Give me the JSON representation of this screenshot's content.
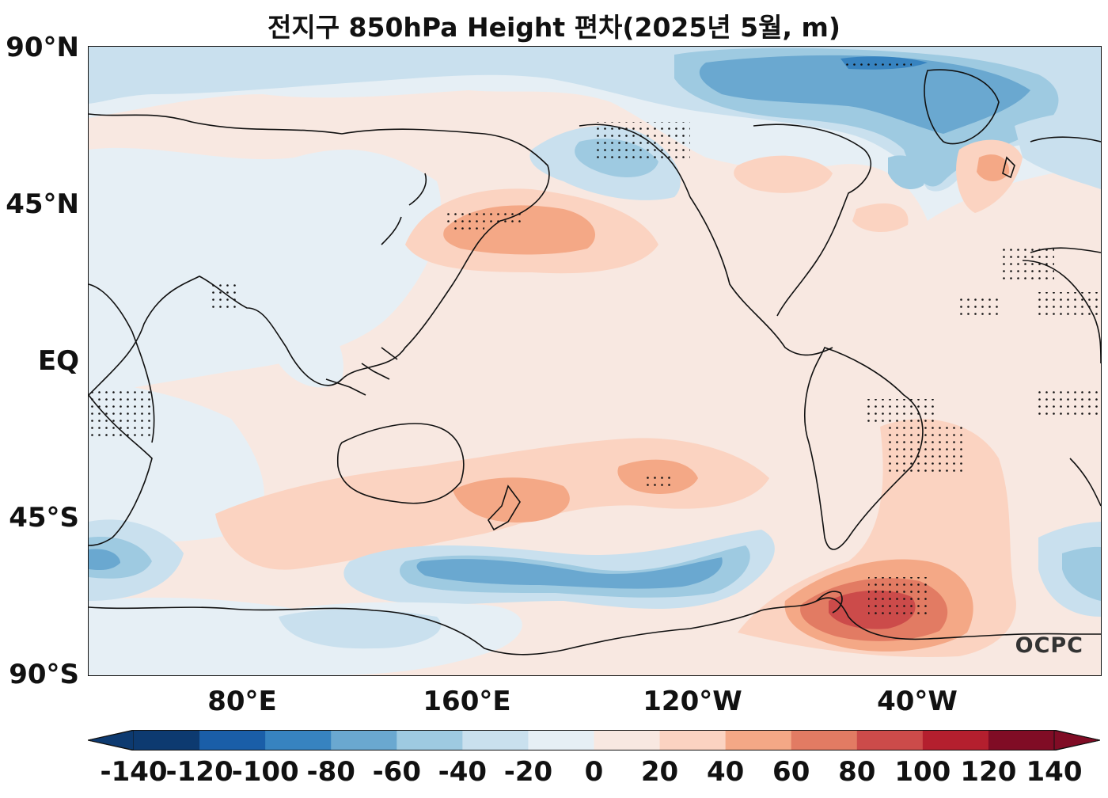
{
  "title": "전지구 850hPa Height 편차(2025년 5월, m)",
  "y_axis_labels": [
    "90°N",
    "45°N",
    "EQ",
    "45°S",
    "90°S"
  ],
  "x_axis_labels": [
    "80°E",
    "160°E",
    "120°W",
    "40°W"
  ],
  "logo": "OCPC",
  "colorbar": {
    "ticks": [
      "-140",
      "-120",
      "-100",
      "-80",
      "-60",
      "-40",
      "-20",
      "0",
      "20",
      "40",
      "60",
      "80",
      "100",
      "120",
      "140"
    ],
    "colors": [
      "#0d3a70",
      "#1a5ea8",
      "#3783c0",
      "#6aa8d0",
      "#9ecae1",
      "#c9e0ee",
      "#e6eff5",
      "#f8e8e1",
      "#fbd3c1",
      "#f4a886",
      "#e27b63",
      "#cc4b4a",
      "#b41f2e",
      "#800c25"
    ],
    "extend": "both"
  },
  "map": {
    "projection": "equirectangular, 180°E centered",
    "lon_range": "20°E to 380°E",
    "lat_range": [
      -90,
      90
    ],
    "field": "850hPa geopotential height anomaly (m)",
    "stippling": "statistically significant regions"
  }
}
